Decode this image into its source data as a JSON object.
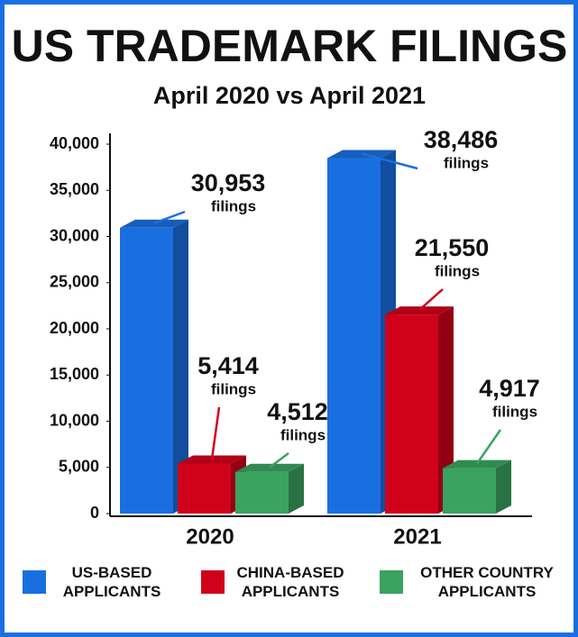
{
  "chart_data": {
    "type": "bar3d",
    "title": "US TRADEMARK FILINGS",
    "subtitle": "April 2020 vs April 2021",
    "categories": [
      "2020",
      "2021"
    ],
    "series": [
      {
        "name": "US-BASED APPLICANTS",
        "color": "#1a6fe0",
        "values": [
          30953,
          38486
        ],
        "value_labels": [
          "30,953",
          "38,486"
        ]
      },
      {
        "name": "CHINA-BASED APPLICANTS",
        "color": "#d0021b",
        "values": [
          5414,
          21550
        ],
        "value_labels": [
          "5,414",
          "21,550"
        ]
      },
      {
        "name": "OTHER COUNTRY APPLICANTS",
        "color": "#3aa35f",
        "values": [
          4512,
          4917
        ],
        "value_labels": [
          "4,512",
          "4,917"
        ]
      }
    ],
    "value_label_unit": "filings",
    "ylim": [
      0,
      40000
    ],
    "yticks": [
      0,
      {
        "value": 5000,
        "label": "5,000"
      },
      {
        "value": 10000,
        "label": "10,000"
      },
      {
        "value": 15000,
        "label": "15,000"
      },
      {
        "value": 20000,
        "label": "20,000"
      },
      {
        "value": 25000,
        "label": "25,000"
      },
      {
        "value": 30000,
        "label": "30,000"
      },
      {
        "value": 35000,
        "label": "35,000"
      },
      {
        "value": 40000,
        "label": "40,000"
      }
    ]
  }
}
